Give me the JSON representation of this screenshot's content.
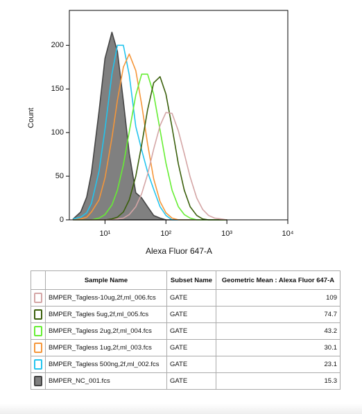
{
  "chart_data": {
    "type": "line",
    "x_label": "Alexa Fluor 647-A",
    "y_label": "Count",
    "x_scale": "log",
    "xlim": [
      2.6,
      10000
    ],
    "xticks": [
      {
        "value": 10,
        "label": "10¹"
      },
      {
        "value": 100,
        "label": "10²"
      },
      {
        "value": 1000,
        "label": "10³"
      },
      {
        "value": 10000,
        "label": "10⁴"
      }
    ],
    "ylim": [
      0,
      240
    ],
    "yticks": [
      0,
      50,
      100,
      150,
      200
    ],
    "x": [
      3,
      4,
      5,
      6,
      8,
      10,
      13,
      16,
      20,
      25,
      32,
      40,
      50,
      63,
      80,
      100,
      126,
      160,
      200,
      250,
      320,
      400,
      500,
      630,
      800,
      1000
    ],
    "series": [
      {
        "name": "BMPER_Tagless-10ug,2f,ml_006.fcs",
        "color": "#d4a5a5",
        "filled": false,
        "values": [
          0,
          0,
          0,
          0,
          0,
          0,
          0,
          1,
          2,
          6,
          15,
          30,
          52,
          81,
          108,
          123,
          122,
          102,
          76,
          49,
          25,
          12,
          5,
          2,
          1,
          0
        ]
      },
      {
        "name": "BMPER_Tagles 5ug,2f,ml_005.fcs",
        "color": "#3a5f0b",
        "filled": false,
        "values": [
          0,
          0,
          0,
          0,
          0,
          0,
          1,
          3,
          9,
          23,
          50,
          86,
          126,
          157,
          164,
          144,
          106,
          64,
          34,
          15,
          5,
          1,
          0,
          0,
          0,
          0
        ]
      },
      {
        "name": "BMPER_Tagless 2ug,2f,ml_004.fcs",
        "color": "#66ee33",
        "filled": false,
        "values": [
          0,
          0,
          0,
          0,
          2,
          6,
          17,
          34,
          63,
          101,
          143,
          167,
          167,
          144,
          103,
          65,
          34,
          15,
          6,
          2,
          0,
          0,
          0,
          0,
          0,
          0
        ]
      },
      {
        "name": "BMPER_Tagless 1ug,2f,ml_003.fcs",
        "color": "#f5963a",
        "filled": false,
        "values": [
          0,
          1,
          3,
          9,
          23,
          48,
          94,
          137,
          175,
          190,
          171,
          132,
          87,
          47,
          21,
          8,
          2,
          0,
          0,
          0,
          0,
          0,
          0,
          0,
          0,
          0
        ]
      },
      {
        "name": "BMPER_Tagless 500ng,2f,ml_002.fcs",
        "color": "#22c4ee",
        "filled": false,
        "values": [
          1,
          3,
          8,
          19,
          56,
          104,
          167,
          200,
          200,
          166,
          107,
          80,
          55,
          35,
          15,
          5,
          0,
          0,
          0,
          0,
          0,
          0,
          0,
          0,
          0,
          0
        ]
      },
      {
        "name": "BMPER_NC_001.fcs",
        "color": "#808080",
        "filled": true,
        "values": [
          1,
          9,
          26,
          54,
          125,
          185,
          215,
          193,
          136,
          76,
          31,
          25,
          15,
          5,
          2,
          0,
          0,
          0,
          0,
          0,
          0,
          0,
          0,
          0,
          0,
          0
        ]
      }
    ]
  },
  "table": {
    "headers": [
      "Sample Name",
      "Subset Name",
      "Geometric Mean : Alexa Fluor 647-A"
    ],
    "rows": [
      [
        "BMPER_Tagless-10ug,2f,ml_006.fcs",
        "GATE",
        "109"
      ],
      [
        "BMPER_Tagles 5ug,2f,ml_005.fcs",
        "GATE",
        "74.7"
      ],
      [
        "BMPER_Tagless 2ug,2f,ml_004.fcs",
        "GATE",
        "43.2"
      ],
      [
        "BMPER_Tagless 1ug,2f,ml_003.fcs",
        "GATE",
        "30.1"
      ],
      [
        "BMPER_Tagless 500ng,2f,ml_002.fcs",
        "GATE",
        "23.1"
      ],
      [
        "BMPER_NC_001.fcs",
        "GATE",
        "15.3"
      ]
    ]
  }
}
